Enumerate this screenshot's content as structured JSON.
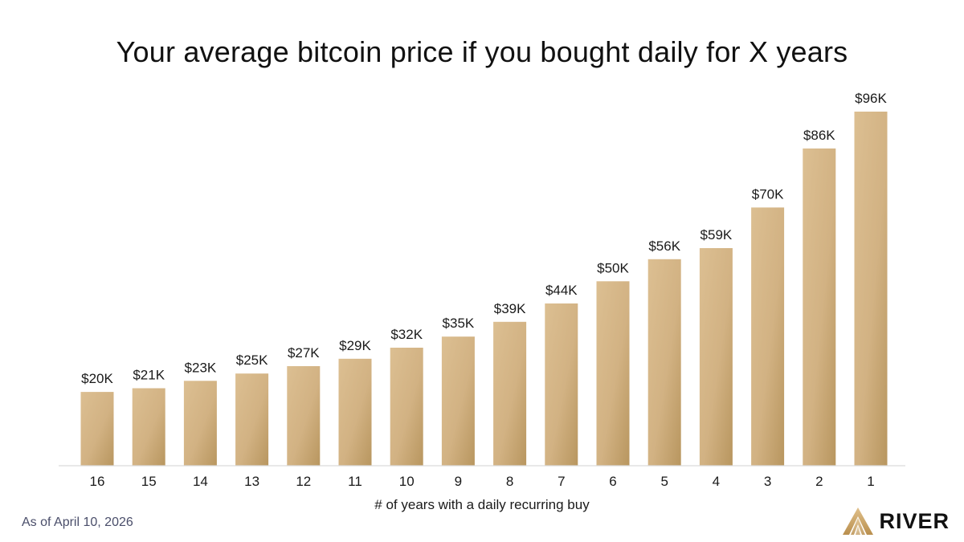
{
  "chart_data": {
    "type": "bar",
    "title": "Your average bitcoin price if you bought daily for X years",
    "xlabel": "# of years with a daily recurring buy",
    "ylabel": "",
    "categories": [
      "16",
      "15",
      "14",
      "13",
      "12",
      "11",
      "10",
      "9",
      "8",
      "7",
      "6",
      "5",
      "4",
      "3",
      "2",
      "1"
    ],
    "values": [
      20,
      21,
      23,
      25,
      27,
      29,
      32,
      35,
      39,
      44,
      50,
      56,
      59,
      70,
      86,
      96
    ],
    "value_labels": [
      "$20K",
      "$21K",
      "$23K",
      "$25K",
      "$27K",
      "$29K",
      "$32K",
      "$35K",
      "$39K",
      "$44K",
      "$50K",
      "$56K",
      "$59K",
      "$70K",
      "$86K",
      "$96K"
    ],
    "unit": "thousands USD",
    "ylim": [
      0,
      96
    ],
    "grid": false,
    "legend": "none",
    "colors": {
      "bar_light": "#d8b98a",
      "bar_dark": "#c2a06c",
      "axis": "#d9d9d9"
    }
  },
  "footer": {
    "as_of": "As of April 10, 2026",
    "brand": "RIVER",
    "logo_icon": "river-mountain-logo-icon"
  }
}
